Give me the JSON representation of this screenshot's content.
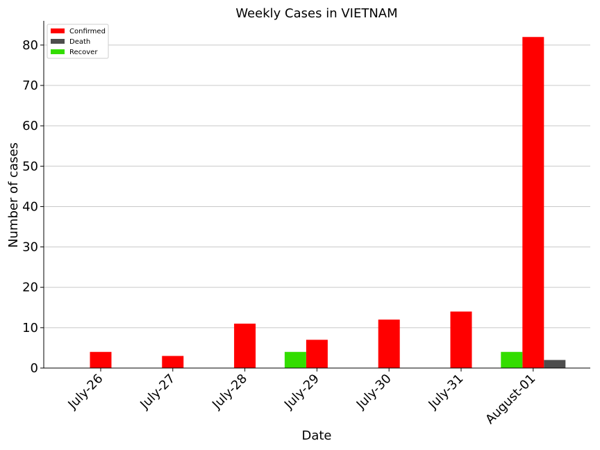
{
  "chart_data": {
    "type": "bar",
    "title": "Weekly Cases in VIETNAM",
    "xlabel": "Date",
    "ylabel": "Number of cases",
    "categories": [
      "July-26",
      "July-27",
      "July-28",
      "July-29",
      "July-30",
      "July-31",
      "August-01"
    ],
    "series": [
      {
        "name": "Confirmed",
        "color": "#ff0000",
        "values": [
          4,
          3,
          11,
          7,
          12,
          14,
          82
        ]
      },
      {
        "name": "Death",
        "color": "#4d4d4d",
        "values": [
          0,
          0,
          0,
          0,
          0,
          0,
          2
        ]
      },
      {
        "name": "Recover",
        "color": "#33dd00",
        "values": [
          0,
          0,
          0,
          4,
          0,
          0,
          4
        ]
      }
    ],
    "ylim": [
      0,
      86
    ],
    "yticks": [
      0,
      10,
      20,
      30,
      40,
      50,
      60,
      70,
      80
    ],
    "grid": "horizontal",
    "legend_position": "top-left"
  }
}
